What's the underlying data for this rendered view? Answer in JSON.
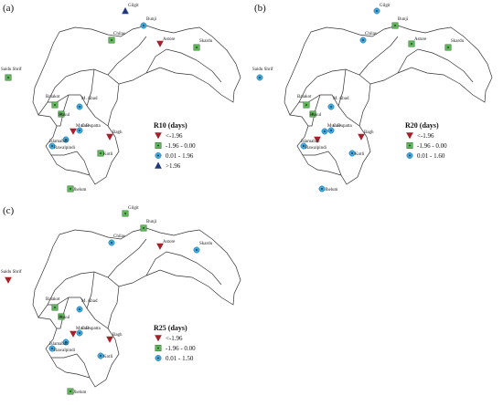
{
  "panels": [
    {
      "label": "(a)",
      "legend": {
        "title": "R10 (days)",
        "items": [
          {
            "symbol": "down-triangle",
            "label": "<-1.96"
          },
          {
            "symbol": "square",
            "label": "-1.96 - 0.00"
          },
          {
            "symbol": "circle",
            "label": "0.01 - 1.96"
          },
          {
            "symbol": "up-triangle",
            "label": ">1.96"
          }
        ]
      },
      "stations": [
        {
          "name": "Gilgit",
          "symbol": "up-triangle"
        },
        {
          "name": "Bunji",
          "symbol": "circle"
        },
        {
          "name": "Chilas",
          "symbol": "square"
        },
        {
          "name": "Astore",
          "symbol": "down-triangle"
        },
        {
          "name": "Skardu",
          "symbol": "square"
        },
        {
          "name": "Saidu Shrif",
          "symbol": "square"
        },
        {
          "name": "Balakot",
          "symbol": "square"
        },
        {
          "name": "M. Abad",
          "symbol": "circle"
        },
        {
          "name": "Kakul",
          "symbol": "square"
        },
        {
          "name": "G.Dupatta",
          "symbol": "circle"
        },
        {
          "name": "Murree",
          "symbol": "down-triangle"
        },
        {
          "name": "Islamabad",
          "symbol": "circle"
        },
        {
          "name": "Rawalpindi",
          "symbol": "circle"
        },
        {
          "name": "Kotli",
          "symbol": "square"
        },
        {
          "name": "Bagh",
          "symbol": "down-triangle"
        },
        {
          "name": "Jhelum",
          "symbol": "square"
        }
      ]
    },
    {
      "label": "(b)",
      "legend": {
        "title": "R20 (days)",
        "items": [
          {
            "symbol": "down-triangle",
            "label": "<-1.96"
          },
          {
            "symbol": "square",
            "label": "-1.96 - 0.00"
          },
          {
            "symbol": "circle",
            "label": "0.01 - 1.60"
          }
        ]
      },
      "stations": [
        {
          "name": "Gilgit",
          "symbol": "circle"
        },
        {
          "name": "Bunji",
          "symbol": "square"
        },
        {
          "name": "Chilas",
          "symbol": "circle"
        },
        {
          "name": "Astore",
          "symbol": "square"
        },
        {
          "name": "Skardu",
          "symbol": "square"
        },
        {
          "name": "Saidu Shrif",
          "symbol": "circle"
        },
        {
          "name": "Balakot",
          "symbol": "square"
        },
        {
          "name": "M. Abad",
          "symbol": "circle"
        },
        {
          "name": "Kakul",
          "symbol": "square"
        },
        {
          "name": "G.Dupatta",
          "symbol": "circle"
        },
        {
          "name": "Murree",
          "symbol": "circle"
        },
        {
          "name": "Islamabad",
          "symbol": "down-triangle"
        },
        {
          "name": "Rawalpindi",
          "symbol": "circle"
        },
        {
          "name": "Kotli",
          "symbol": "circle"
        },
        {
          "name": "Bagh",
          "symbol": "down-triangle"
        },
        {
          "name": "Jhelum",
          "symbol": "circle"
        }
      ]
    },
    {
      "label": "(c)",
      "legend": {
        "title": "R25 (days)",
        "items": [
          {
            "symbol": "down-triangle",
            "label": "<-1.96"
          },
          {
            "symbol": "square",
            "label": "-1.96 - 0.00"
          },
          {
            "symbol": "circle",
            "label": "0.01 - 1.50"
          }
        ]
      },
      "stations": [
        {
          "name": "Gilgit",
          "symbol": "square"
        },
        {
          "name": "Bunji",
          "symbol": "square"
        },
        {
          "name": "Chilas",
          "symbol": "circle"
        },
        {
          "name": "Astore",
          "symbol": "down-triangle"
        },
        {
          "name": "Skardu",
          "symbol": "circle"
        },
        {
          "name": "Saidu Shrif",
          "symbol": "down-triangle"
        },
        {
          "name": "Balakot",
          "symbol": "square"
        },
        {
          "name": "M. Abad",
          "symbol": "circle"
        },
        {
          "name": "Kakul",
          "symbol": "square"
        },
        {
          "name": "G.Dupatta",
          "symbol": "circle"
        },
        {
          "name": "Murree",
          "symbol": "down-triangle"
        },
        {
          "name": "Islamabad",
          "symbol": "circle"
        },
        {
          "name": "Rawalpindi",
          "symbol": "circle"
        },
        {
          "name": "Kotli",
          "symbol": "circle"
        },
        {
          "name": "Bagh",
          "symbol": "down-triangle"
        },
        {
          "name": "Jhelum",
          "symbol": "square"
        }
      ]
    }
  ]
}
